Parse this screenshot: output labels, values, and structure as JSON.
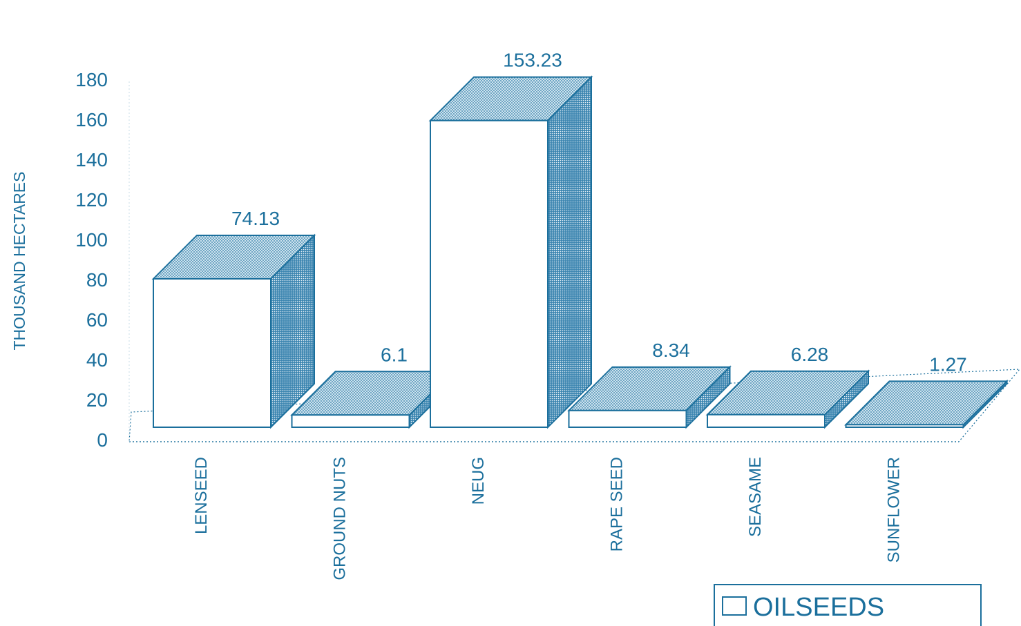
{
  "chart_data": {
    "type": "bar",
    "title": "",
    "xlabel": "",
    "ylabel": "THOUSAND HECTARES",
    "ylim": [
      0,
      180
    ],
    "yticks": [
      0,
      20,
      40,
      60,
      80,
      100,
      120,
      140,
      160,
      180
    ],
    "categories": [
      "LENSEED",
      "GROUND NUTS",
      "NEUG",
      "RAPE SEED",
      "SEASAME",
      "SUNFLOWER"
    ],
    "series": [
      {
        "name": "OILSEEDS",
        "values": [
          74.13,
          6.1,
          153.23,
          8.34,
          6.28,
          1.27
        ],
        "value_labels": [
          "74.13",
          "6.1",
          "153.23",
          "8.34",
          "6.28",
          "1.27"
        ]
      }
    ],
    "legend_position": "bottom-right",
    "grid": false,
    "style": "3d-bar",
    "colors": {
      "ink": "#1b6f9c",
      "front": "#ffffff",
      "top": "#b8d6e6",
      "side": "#4f93bb"
    }
  }
}
